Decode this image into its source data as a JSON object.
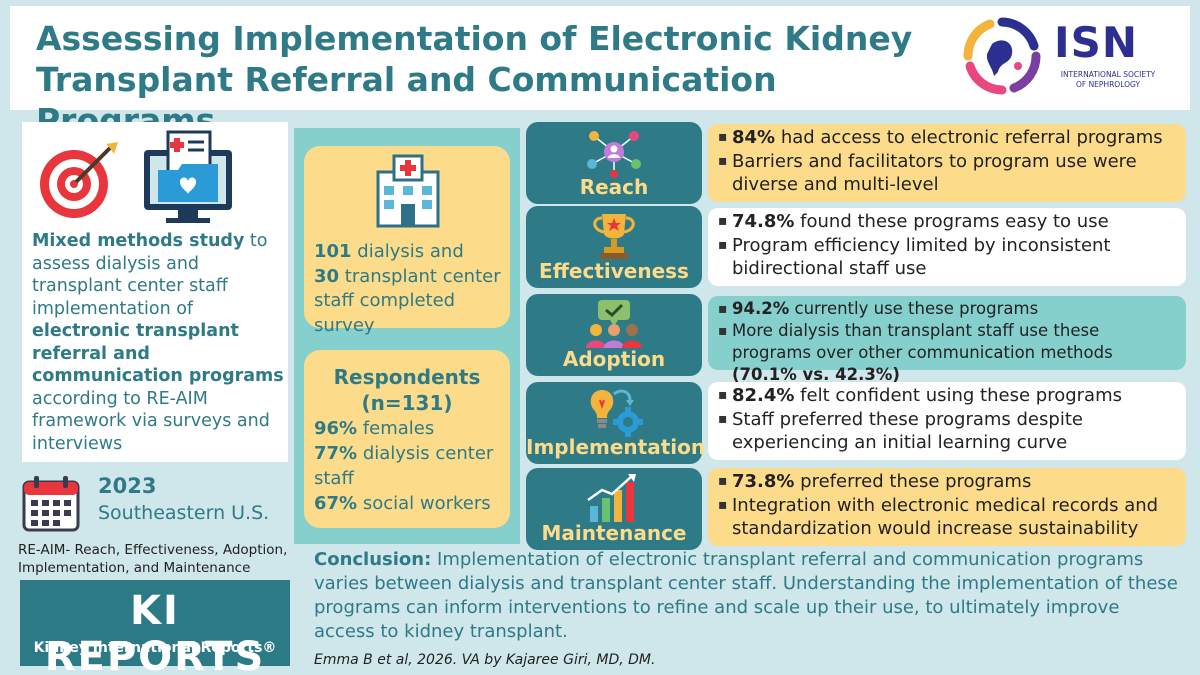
{
  "header": {
    "title_line1": "Assessing Implementation of Electronic Kidney",
    "title_line2": "Transplant Referral and Communication Programs",
    "logo_letters": "ISN",
    "logo_sub_line1": "INTERNATIONAL SOCIETY",
    "logo_sub_line2": "OF NEPHROLOGY"
  },
  "left": {
    "study_bold1": "Mixed methods study",
    "study_text1": " to assess dialysis and transplant center staff implementation of ",
    "study_bold2": "electronic transplant referral and communication programs",
    "study_text2": " according to RE-AIM framework via surveys and interviews",
    "year": "2023",
    "region": "Southeastern U.S.",
    "reaim_note": "RE-AIM- Reach, Effectiveness, Adoption, Implementation, and Maintenance",
    "brand_title": "KI REPORTS",
    "brand_sub": "Kidney International Reports®"
  },
  "middle": {
    "survey_num1": "101",
    "survey_text1": " dialysis and",
    "survey_num2": "30",
    "survey_text2": " transplant center staff completed survey",
    "resp_title1": "Respondents",
    "resp_title2": "(n=131)",
    "stats": [
      {
        "pct": "96%",
        "label": " females"
      },
      {
        "pct": "77%",
        "label": " dialysis center staff"
      },
      {
        "pct": "67%",
        "label": " social workers"
      }
    ]
  },
  "dimensions": [
    {
      "label": "Reach",
      "icon": "network-people-icon",
      "bullets": [
        {
          "bold": "84%",
          "text": " had access to electronic referral programs"
        },
        {
          "bold": "",
          "text": "Barriers and facilitators to program use were diverse and multi-level"
        }
      ]
    },
    {
      "label": "Effectiveness",
      "icon": "trophy-icon",
      "bullets": [
        {
          "bold": "74.8%",
          "text": " found these programs easy to use"
        },
        {
          "bold": "",
          "text": "Program efficiency limited by inconsistent bidirectional staff use"
        }
      ]
    },
    {
      "label": "Adoption",
      "icon": "team-chat-icon",
      "bullets": [
        {
          "bold": "94.2%",
          "text": " currently use these programs"
        },
        {
          "bold": "",
          "text": "More dialysis than transplant staff use these programs over other communication methods ",
          "bold_end": "(70.1% vs. 42.3%)"
        }
      ]
    },
    {
      "label": "Implementation",
      "icon": "lightbulb-gear-icon",
      "bullets": [
        {
          "bold": "82.4%",
          "text": " felt confident using these programs"
        },
        {
          "bold": "",
          "text": "Staff preferred these programs despite experiencing an initial learning curve"
        }
      ]
    },
    {
      "label": "Maintenance",
      "icon": "growth-chart-icon",
      "bullets": [
        {
          "bold": "73.8%",
          "text": " preferred these programs"
        },
        {
          "bold": "",
          "text": "Integration with electronic medical records and standardization would increase sustainability"
        }
      ]
    }
  ],
  "conclusion": {
    "label": "Conclusion:",
    "text": " Implementation of electronic transplant referral and communication programs varies between dialysis and transplant center staff. Understanding the implementation of these programs can inform interventions to refine and scale up their use, to ultimately improve access to kidney transplant."
  },
  "citation": "Emma B et al, 2026. VA by Kajaree Giri, MD, DM.",
  "colors": {
    "teal_dark": "#2e7a86",
    "teal_light": "#85cfcc",
    "yellow": "#fcdc8a",
    "background": "#cfe6eb"
  }
}
